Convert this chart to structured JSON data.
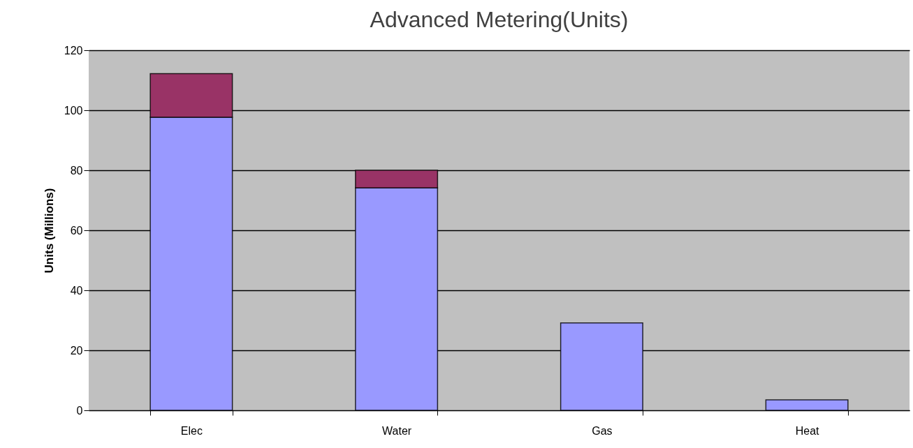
{
  "chart_data": {
    "type": "bar",
    "title": "Advanced Metering(Units)",
    "ylabel": "Units (Millions)",
    "stacked": true,
    "categories": [
      "Elec",
      "Water",
      "Gas",
      "Heat"
    ],
    "series": [
      {
        "color": "#9999ff",
        "values": [
          97.7,
          74.1,
          29.1,
          3.5
        ]
      },
      {
        "color": "#993366",
        "values": [
          14.5,
          5.9,
          null,
          null
        ]
      }
    ],
    "ylim": [
      0,
      120
    ],
    "yticks": [
      0,
      20,
      40,
      60,
      80,
      100,
      120
    ],
    "grid": "y",
    "legend": false
  }
}
